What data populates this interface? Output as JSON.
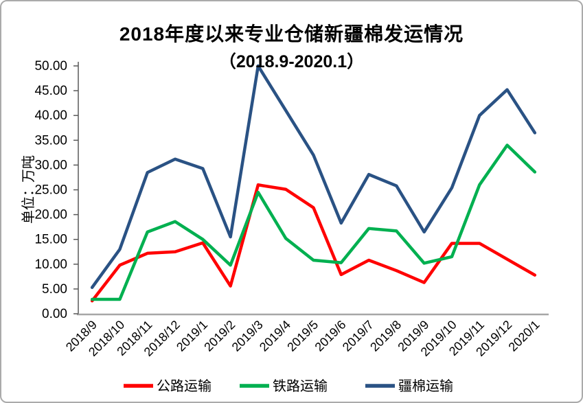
{
  "chart_data": {
    "type": "line",
    "title": "2018年度以来专业仓储新疆棉发运情况",
    "subtitle": "（2018.9-2020.1）",
    "ylabel": "单位：万吨",
    "ylim": [
      0,
      50
    ],
    "ytick_step": 5,
    "ytick_decimals": 2,
    "grid": false,
    "legend_position": "bottom",
    "categories": [
      "2018/9",
      "2018/10",
      "2018/11",
      "2018/12",
      "2019/1",
      "2019/2",
      "2019/3",
      "2019/4",
      "2019/5",
      "2019/6",
      "2019/7",
      "2019/8",
      "2019/9",
      "2019/10",
      "2019/11",
      "2019/12",
      "2020/1"
    ],
    "series": [
      {
        "name": "公路运输",
        "color": "#FF0000",
        "values": [
          2.6,
          9.8,
          12.2,
          12.5,
          14.3,
          5.6,
          26.0,
          25.1,
          21.4,
          7.9,
          10.8,
          8.7,
          6.3,
          14.2,
          14.2,
          11.0,
          7.8
        ]
      },
      {
        "name": "铁路运输",
        "color": "#00B050",
        "values": [
          2.9,
          2.9,
          16.5,
          18.6,
          15.0,
          9.8,
          24.5,
          15.2,
          10.8,
          10.3,
          17.2,
          16.7,
          10.2,
          11.5,
          26.0,
          34.0,
          28.6
        ]
      },
      {
        "name": "疆棉运输",
        "color": "#2A5284",
        "values": [
          5.3,
          13.0,
          28.5,
          31.2,
          29.3,
          15.5,
          50.0,
          41.0,
          32.0,
          18.3,
          28.1,
          25.8,
          16.5,
          25.4,
          40.0,
          45.2,
          36.5
        ]
      }
    ],
    "axis_colors": {
      "y_axis": "#595959",
      "x_axis": "#A6A6A6",
      "text": "#000000"
    }
  }
}
